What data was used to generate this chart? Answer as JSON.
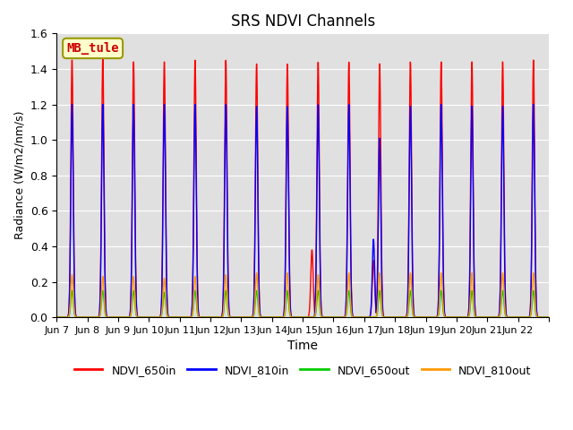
{
  "title": "SRS NDVI Channels",
  "xlabel": "Time",
  "ylabel": "Radiance (W/m2/nm/s)",
  "annotation": "MB_tule",
  "ylim": [
    0.0,
    1.6
  ],
  "background_color": "#e0e0e0",
  "channels": {
    "NDVI_650in": {
      "color": "#ff0000",
      "peak_variation": [
        1.45,
        1.46,
        1.44,
        1.44,
        1.45,
        1.45,
        1.43,
        1.43,
        1.44,
        1.44,
        1.43,
        1.44,
        1.44,
        1.44,
        1.44,
        1.45
      ],
      "base": 0.0,
      "special": [
        null,
        null,
        null,
        null,
        null,
        null,
        null,
        null,
        0.38,
        null,
        0.32,
        null,
        null,
        null,
        null,
        null
      ]
    },
    "NDVI_810in": {
      "color": "#0000ff",
      "peak_variation": [
        1.2,
        1.2,
        1.2,
        1.2,
        1.2,
        1.2,
        1.19,
        1.19,
        1.2,
        1.2,
        1.01,
        1.19,
        1.2,
        1.19,
        1.19,
        1.2
      ],
      "base": 0.0,
      "special": [
        null,
        null,
        null,
        null,
        null,
        null,
        null,
        null,
        null,
        null,
        0.44,
        null,
        null,
        null,
        null,
        null
      ]
    },
    "NDVI_650out": {
      "color": "#00cc00",
      "peak_variation": [
        0.15,
        0.15,
        0.15,
        0.14,
        0.15,
        0.15,
        0.15,
        0.15,
        0.15,
        0.15,
        0.15,
        0.15,
        0.15,
        0.15,
        0.15,
        0.15
      ],
      "base": 0.0,
      "special": null
    },
    "NDVI_810out": {
      "color": "#ff9900",
      "peak_variation": [
        0.24,
        0.23,
        0.23,
        0.22,
        0.23,
        0.24,
        0.25,
        0.25,
        0.24,
        0.25,
        0.25,
        0.25,
        0.25,
        0.25,
        0.25,
        0.25
      ],
      "base": 0.0,
      "special": null
    }
  },
  "tick_positions": [
    0,
    1,
    2,
    3,
    4,
    5,
    6,
    7,
    8,
    9,
    10,
    11,
    12,
    13,
    14,
    15,
    16
  ],
  "tick_labels": [
    "Jun 7",
    "Jun 8",
    "Jun 9",
    "Jun 10",
    "Jun 11",
    "Jun 12",
    "Jun 13",
    "Jun 14",
    "Jun 15",
    "Jun 16",
    "Jun 17",
    "Jun 18",
    "Jun 19",
    "Jun 20",
    "Jun 21",
    "Jun 22",
    ""
  ],
  "num_days": 16,
  "yticks": [
    0.0,
    0.2,
    0.4,
    0.6,
    0.8,
    1.0,
    1.2,
    1.4,
    1.6
  ],
  "legend_entries": [
    "NDVI_650in",
    "NDVI_810in",
    "NDVI_650out",
    "NDVI_810out"
  ],
  "legend_colors": [
    "#ff0000",
    "#0000ff",
    "#00cc00",
    "#ff9900"
  ]
}
